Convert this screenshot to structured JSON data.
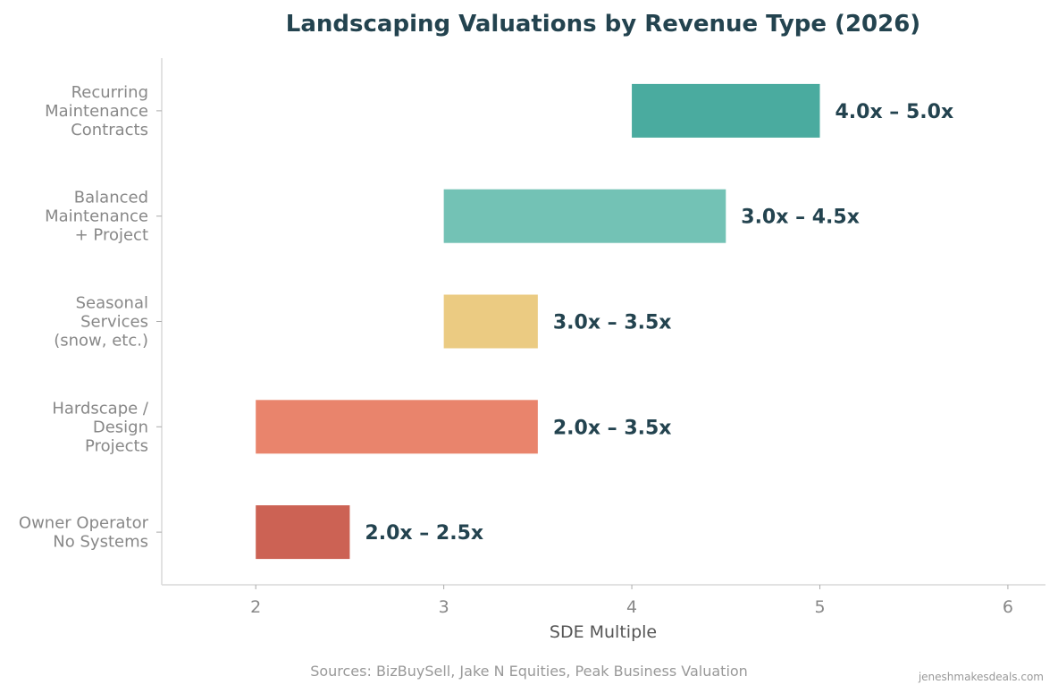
{
  "chart_data": {
    "type": "bar",
    "orientation": "horizontal-range",
    "title": "Landscaping Valuations by Revenue Type (2026)",
    "xlabel": "SDE Multiple",
    "ylabel": "",
    "xlim": [
      1.5,
      6.2
    ],
    "xticks": [
      "2",
      "3",
      "4",
      "5",
      "6"
    ],
    "grid": false,
    "categories": [
      [
        "Recurring",
        "Maintenance",
        "Contracts"
      ],
      [
        "Balanced",
        "Maintenance",
        "+ Project"
      ],
      [
        "Seasonal",
        "Services",
        "(snow, etc.)"
      ],
      [
        "Hardscape /",
        "Design",
        "Projects"
      ],
      [
        "Owner Operator",
        "No Systems"
      ]
    ],
    "ranges": [
      [
        4.0,
        5.0
      ],
      [
        3.0,
        4.5
      ],
      [
        3.0,
        3.5
      ],
      [
        2.0,
        3.5
      ],
      [
        2.0,
        2.5
      ]
    ],
    "labels": [
      "4.0x – 5.0x",
      "3.0x – 4.5x",
      "3.0x – 3.5x",
      "2.0x – 3.5x",
      "2.0x – 2.5x"
    ],
    "colors": [
      "#4aab9f",
      "#73c2b5",
      "#ebcb82",
      "#e9846c",
      "#cc6254"
    ],
    "source": "Sources: BizBuySell, Jake N Equities, Peak Business Valuation",
    "watermark": "jeneshmakesdeals.com"
  }
}
